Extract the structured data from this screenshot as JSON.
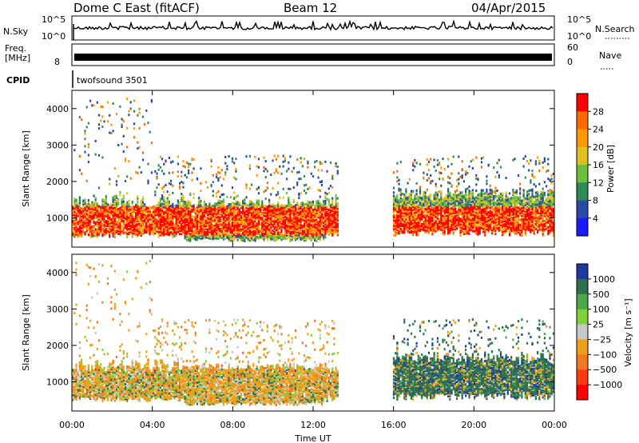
{
  "header": {
    "radar": "Dome C East (fitACF)",
    "beam": "Beam 12",
    "date": "04/Apr/2015"
  },
  "strips": {
    "nsky_label": "N.Sky",
    "nsky_ticks": [
      "10^5",
      "10^0"
    ],
    "nsearch_label": "N.Search",
    "freq_label": "Freq.",
    "freq_unit": "[MHz]",
    "freq_ticks": [
      "8"
    ],
    "nave_label": "Nave",
    "nave_ticks": [
      "60",
      "0"
    ],
    "cpid_label": "CPID",
    "cpid_value": "twofsound 3501"
  },
  "colors": {
    "power": [
      "#1a1aff",
      "#2a4aa8",
      "#2e8b57",
      "#6cbf3a",
      "#e0c020",
      "#ff9900",
      "#ff6a00",
      "#ff0000"
    ],
    "velocity": [
      "#1a3aa0",
      "#2f6f50",
      "#4aa84a",
      "#7fd23a",
      "#c8c8c8",
      "#f0a018",
      "#f07820",
      "#ff3a10",
      "#ff0000"
    ]
  },
  "chart_data": [
    {
      "type": "heatmap",
      "name": "power",
      "ylabel": "Slant Range [km]",
      "y_ticks": [
        1000,
        2000,
        3000,
        4000
      ],
      "ylim": [
        200,
        4500
      ],
      "colorbar_label": "Power [dB]",
      "colorbar_ticks": [
        "4",
        "8",
        "12",
        "16",
        "20",
        "24",
        "28"
      ]
    },
    {
      "type": "heatmap",
      "name": "velocity",
      "ylabel": "Slant Range [km]",
      "y_ticks": [
        1000,
        2000,
        3000,
        4000
      ],
      "ylim": [
        200,
        4500
      ],
      "colorbar_label": "Velocity [m s⁻¹]",
      "colorbar_ticks": [
        "1000",
        "500",
        "100",
        "25",
        "−25",
        "−100",
        "−500",
        "−1000"
      ]
    }
  ],
  "x_axis": {
    "label": "Time UT",
    "ticks": [
      "00:00",
      "04:00",
      "08:00",
      "12:00",
      "16:00",
      "20:00",
      "00:00"
    ]
  }
}
